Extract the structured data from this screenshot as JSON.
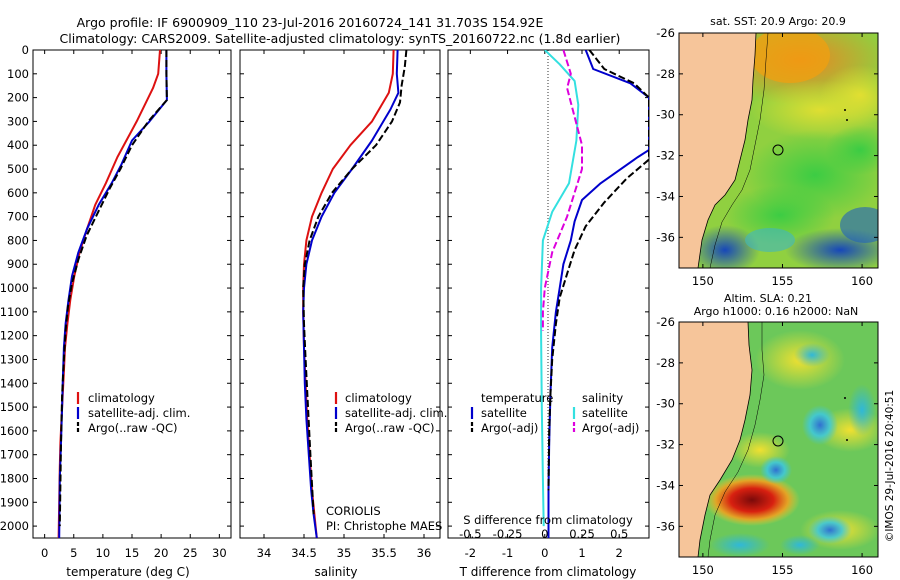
{
  "title": {
    "line1": "Argo profile: IF 6900909_110 23-Jul-2016 20160724_141 31.703S 154.92E",
    "line2": "Climatology: CARS2009. Satellite-adjusted climatology: synTS_20160722.nc (1.8d earlier)"
  },
  "colors": {
    "climatology": "#dd1111",
    "satellite": "#0000cc",
    "argo": "#000000",
    "sal_satellite": "#33e0e0",
    "sal_argo": "#dd00dd",
    "land": "#f6c59a"
  },
  "chart_data": [
    {
      "id": "temperature",
      "type": "line",
      "xlabel": "temperature (deg C)",
      "ylabel": "",
      "xlim": [
        -2,
        32
      ],
      "ylim": [
        2050,
        0
      ],
      "xticks": [
        0,
        5,
        10,
        15,
        20,
        25,
        30
      ],
      "yticks": [
        0,
        100,
        200,
        300,
        400,
        500,
        600,
        700,
        800,
        900,
        1000,
        1100,
        1200,
        1300,
        1400,
        1500,
        1600,
        1700,
        1800,
        1900,
        2000
      ],
      "legend": [
        "climatology",
        "satellite-adj. clim.",
        "Argo(..raw -QC)"
      ],
      "series": [
        {
          "name": "climatology",
          "style": "solid",
          "color": "#dd1111",
          "x": [
            19.8,
            19.5,
            18.6,
            15.8,
            12.5,
            10.5,
            8.7,
            7.3,
            6.0,
            5.1,
            4.4,
            3.9,
            3.5,
            3.3,
            3.1,
            2.9,
            2.7,
            2.6,
            2.5,
            2.4
          ],
          "y": [
            0,
            100,
            160,
            300,
            450,
            560,
            650,
            750,
            850,
            950,
            1050,
            1150,
            1250,
            1350,
            1450,
            1550,
            1650,
            1750,
            1900,
            2050
          ]
        },
        {
          "name": "satellite-adj. clim.",
          "style": "solid",
          "color": "#0000cc",
          "x": [
            20.9,
            20.9,
            21.0,
            18.0,
            15.0,
            13.2,
            11.5,
            9.3,
            7.3,
            5.8,
            4.7,
            4.1,
            3.6,
            3.3,
            3.1,
            3.0,
            2.8,
            2.6,
            2.5
          ],
          "y": [
            0,
            100,
            210,
            300,
            380,
            480,
            560,
            650,
            750,
            850,
            950,
            1050,
            1150,
            1250,
            1400,
            1500,
            1650,
            1800,
            2050
          ]
        },
        {
          "name": "Argo(..raw -QC)",
          "style": "dash",
          "color": "#000000",
          "x": [
            20.9,
            20.9,
            21.0,
            17.8,
            15.0,
            13.0,
            11.2,
            9.2,
            7.2,
            5.8,
            4.7,
            4.0,
            3.6,
            3.3,
            3.0,
            2.8,
            2.6
          ],
          "y": [
            0,
            100,
            210,
            300,
            400,
            500,
            580,
            680,
            780,
            880,
            980,
            1080,
            1180,
            1300,
            1450,
            1650,
            2000
          ]
        }
      ]
    },
    {
      "id": "salinity",
      "type": "line",
      "xlabel": "salinity",
      "ylabel": "",
      "xlim": [
        33.7,
        36.2
      ],
      "ylim": [
        2050,
        0
      ],
      "xticks": [
        34,
        34.5,
        35,
        35.5,
        36
      ],
      "legend": [
        "climatology",
        "satellite-adj. clim.",
        "Argo(..raw -QC)"
      ],
      "series": [
        {
          "name": "climatology",
          "style": "solid",
          "color": "#dd1111",
          "x": [
            35.62,
            35.61,
            35.56,
            35.35,
            35.08,
            34.86,
            34.72,
            34.6,
            34.53,
            34.5,
            34.49,
            34.49,
            34.5,
            34.52,
            34.54,
            34.57,
            34.6,
            34.63,
            34.66
          ],
          "y": [
            0,
            100,
            180,
            300,
            400,
            500,
            600,
            700,
            800,
            900,
            1000,
            1100,
            1250,
            1400,
            1550,
            1700,
            1850,
            1950,
            2050
          ]
        },
        {
          "name": "satellite-adj. clim.",
          "style": "solid",
          "color": "#0000cc",
          "x": [
            35.67,
            35.66,
            35.68,
            35.58,
            35.35,
            35.1,
            34.88,
            34.72,
            34.6,
            34.53,
            34.5,
            34.49,
            34.5,
            34.51,
            34.53,
            34.56,
            34.59,
            34.62,
            34.66
          ],
          "y": [
            0,
            100,
            180,
            250,
            380,
            500,
            600,
            700,
            800,
            900,
            1000,
            1100,
            1250,
            1400,
            1550,
            1700,
            1850,
            1950,
            2050
          ]
        },
        {
          "name": "Argo(..raw -QC)",
          "style": "dash",
          "color": "#000000",
          "x": [
            35.78,
            35.76,
            35.72,
            35.7,
            35.6,
            35.4,
            35.1,
            34.85,
            34.68,
            34.57,
            34.51,
            34.49,
            34.5,
            34.52,
            34.55,
            34.58,
            34.62
          ],
          "y": [
            0,
            70,
            150,
            220,
            300,
            400,
            500,
            600,
            700,
            800,
            900,
            1000,
            1150,
            1300,
            1500,
            1700,
            1950
          ]
        }
      ],
      "annotation": {
        "line1": "CORIOLIS",
        "line2": "PI: Christophe MAES"
      }
    },
    {
      "id": "differences",
      "type": "line",
      "xlabel": "T difference from climatology",
      "top_label": "S difference from climatology",
      "xlim": [
        -2.6,
        2.8
      ],
      "ylim": [
        2050,
        0
      ],
      "xticks": [
        -2,
        -1,
        0,
        1,
        2
      ],
      "sal_ticks": [
        "-0.5",
        "-0.25",
        "0",
        "0.25",
        "0.5"
      ],
      "sal_tick_x": [
        -2,
        -1,
        0,
        1,
        2
      ],
      "legend_temperature": {
        "header": "temperature",
        "items": [
          "satellite",
          "Argo(-adj)"
        ]
      },
      "legend_salinity": {
        "header": "salinity",
        "items": [
          "satellite",
          "Argo(-adj)"
        ]
      },
      "series": [
        {
          "name": "T satellite",
          "style": "solid",
          "color": "#0000cc",
          "x": [
            1.1,
            1.3,
            2.3,
            2.8,
            2.8,
            2.5,
            1.5,
            1.0,
            0.8,
            0.7,
            0.5,
            0.4,
            0.3,
            0.2,
            0.15,
            0.12,
            0.1,
            0.1
          ],
          "y": [
            0,
            80,
            140,
            200,
            420,
            450,
            560,
            630,
            720,
            800,
            900,
            1000,
            1100,
            1250,
            1450,
            1650,
            1850,
            2050
          ]
        },
        {
          "name": "T Argo(-adj)",
          "style": "dash",
          "color": "#000000",
          "x": [
            1.2,
            1.6,
            2.4,
            2.8,
            2.8,
            2.2,
            1.6,
            1.1,
            0.8,
            0.6,
            0.4,
            0.3,
            0.2,
            0.15,
            0.12,
            0.1
          ],
          "y": [
            0,
            80,
            140,
            200,
            460,
            540,
            640,
            740,
            840,
            940,
            1040,
            1150,
            1300,
            1450,
            1600,
            1850
          ]
        },
        {
          "name": "S satellite",
          "style": "solid",
          "color": "#33e0e0",
          "x": [
            0.0,
            0.4,
            0.8,
            0.9,
            0.85,
            0.65,
            0.2,
            -0.05,
            -0.1,
            -0.1,
            -0.08,
            -0.05,
            -0.03
          ],
          "y": [
            0,
            60,
            130,
            230,
            380,
            560,
            680,
            800,
            1000,
            1200,
            1500,
            1800,
            2000
          ]
        },
        {
          "name": "S Argo(-adj)",
          "style": "dash",
          "color": "#dd00dd",
          "x": [
            0.5,
            0.6,
            0.7,
            0.6,
            1.0,
            1.0,
            0.6,
            0.2,
            0.0,
            -0.05,
            -0.05,
            -0.05
          ],
          "y": [
            0,
            50,
            100,
            160,
            400,
            500,
            700,
            850,
            1000,
            1100,
            1150,
            1180
          ]
        }
      ]
    }
  ],
  "maps": {
    "sst": {
      "title": "sat. SST: 20.9 Argo: 20.9",
      "lon_ticks": [
        "150",
        "155",
        "160"
      ],
      "lat_ticks": [
        "-26",
        "-28",
        "-30",
        "-32",
        "-34",
        "-36"
      ],
      "lon_range": [
        148.5,
        161
      ],
      "lat_range": [
        -26,
        -37.5
      ]
    },
    "sla": {
      "title_line1": "Altim. SLA: 0.21",
      "title_line2": "Argo h1000: 0.16 h2000: NaN",
      "lon_ticks": [
        "150",
        "155",
        "160"
      ],
      "lat_ticks": [
        "-26",
        "-28",
        "-30",
        "-32",
        "-34",
        "-36"
      ],
      "lon_range": [
        148.5,
        161
      ],
      "lat_range": [
        -26,
        -37.5
      ]
    },
    "argo_position": {
      "lon": 154.92,
      "lat": -31.703
    }
  },
  "credit": "©IMOS 29-Jul-2016 20:40:51"
}
